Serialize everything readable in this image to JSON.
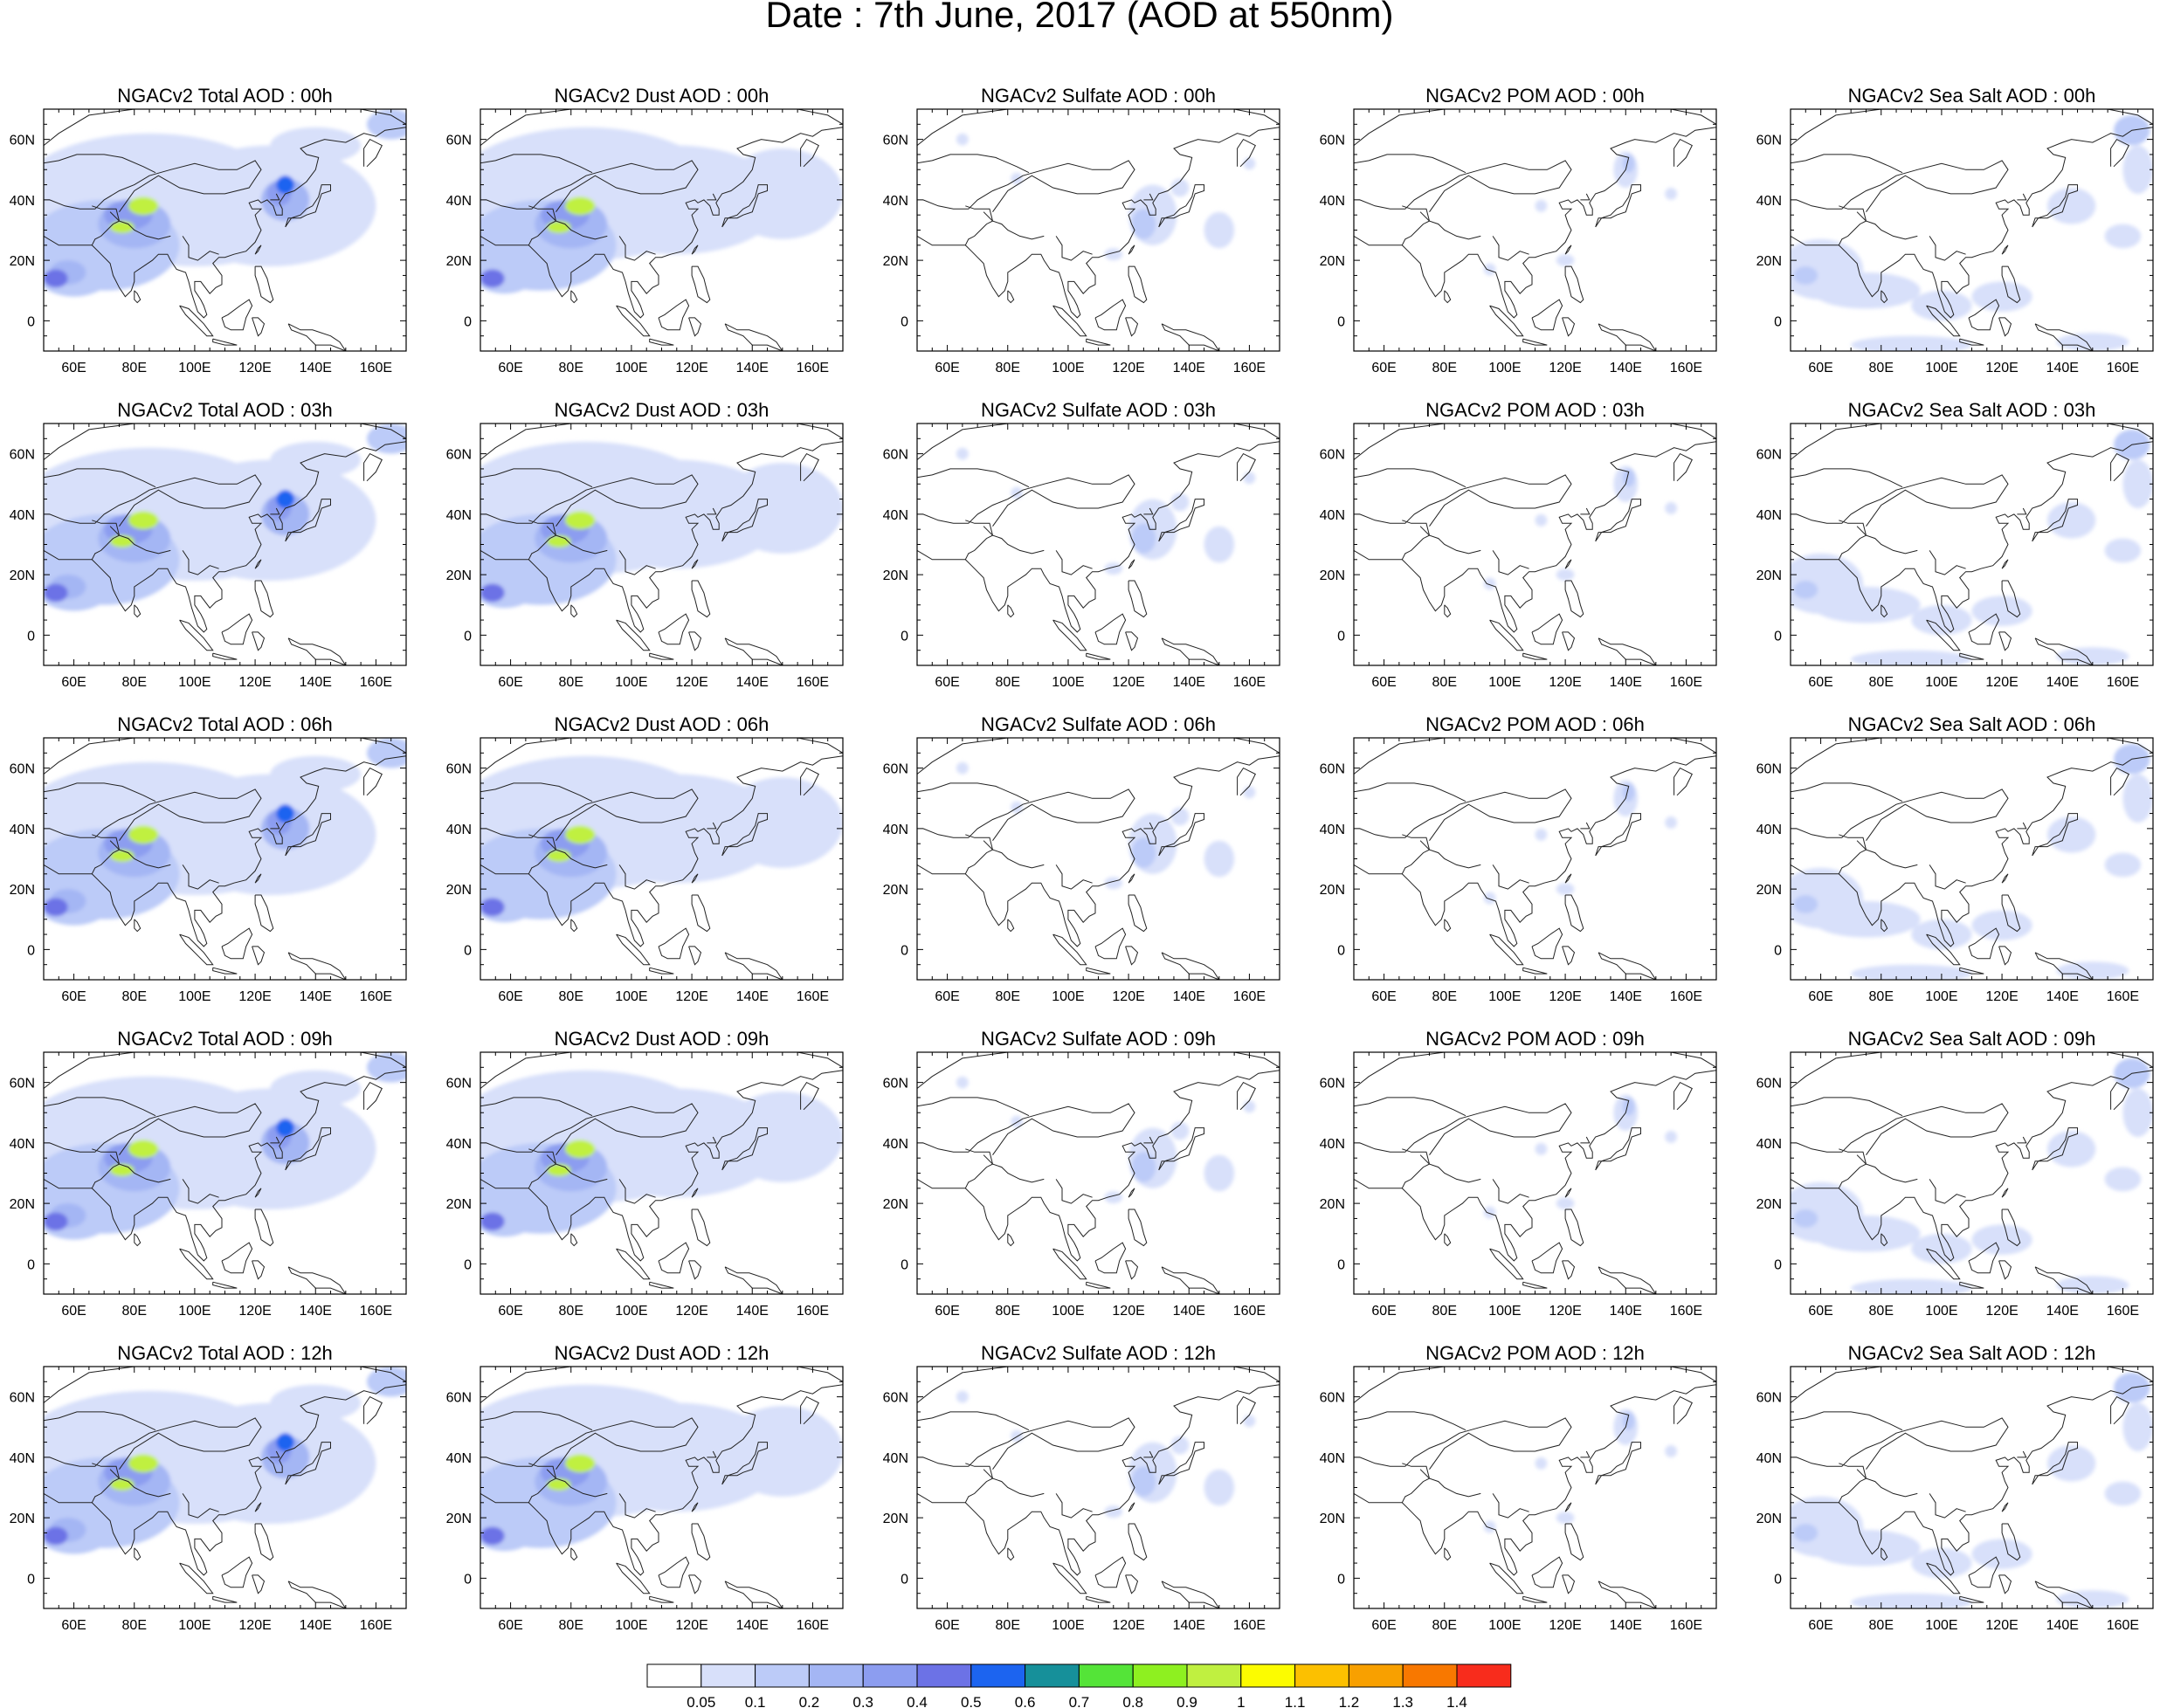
{
  "title": "Date : 7th June, 2017 (AOD at 550nm)",
  "panels": [
    [
      "NGACv2 Total AOD : 00h",
      "NGACv2 Dust AOD : 00h",
      "NGACv2 Sulfate AOD : 00h",
      "NGACv2 POM AOD : 00h",
      "NGACv2 Sea Salt AOD : 00h"
    ],
    [
      "NGACv2 Total AOD : 03h",
      "NGACv2 Dust AOD : 03h",
      "NGACv2 Sulfate AOD : 03h",
      "NGACv2 POM AOD : 03h",
      "NGACv2 Sea Salt AOD : 03h"
    ],
    [
      "NGACv2 Total AOD : 06h",
      "NGACv2 Dust AOD : 06h",
      "NGACv2 Sulfate AOD : 06h",
      "NGACv2 POM AOD : 06h",
      "NGACv2 Sea Salt AOD : 06h"
    ],
    [
      "NGACv2 Total AOD : 09h",
      "NGACv2 Dust AOD : 09h",
      "NGACv2 Sulfate AOD : 09h",
      "NGACv2 POM AOD : 09h",
      "NGACv2 Sea Salt  AOD : 09h"
    ],
    [
      "NGACv2 Total AOD  : 12h",
      "NGACv2 Dust AOD : 12h",
      "NGACv2 Sulfate AOD : 12h",
      "NGACv2 POM  AOD : 12h",
      "NGACv2 Sea Salt  AOD : 12h"
    ]
  ],
  "axes": {
    "lon_labels": [
      "60E",
      "80E",
      "100E",
      "120E",
      "140E",
      "160E"
    ],
    "lat_labels": [
      "60N",
      "40N",
      "20N",
      "0"
    ]
  },
  "colorbar": {
    "labels": [
      "0.05",
      "0.1",
      "0.2",
      "0.3",
      "0.4",
      "0.5",
      "0.6",
      "0.7",
      "0.8",
      "0.9",
      "1",
      "1.1",
      "1.2",
      "1.3",
      "1.4"
    ],
    "colors": [
      "#ffffff",
      "#d8e0fa",
      "#bccbf8",
      "#a4b6f4",
      "#8c9df0",
      "#6c72e6",
      "#1c64f0",
      "#16909a",
      "#54e438",
      "#8ef020",
      "#c0f040",
      "#fcfc00",
      "#fcc000",
      "#f8a000",
      "#f87800",
      "#f82c1c"
    ]
  }
}
